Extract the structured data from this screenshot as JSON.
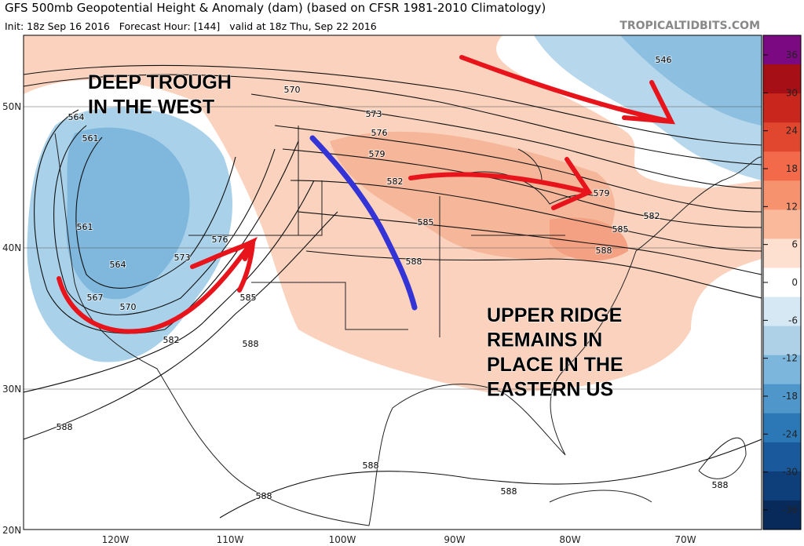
{
  "header": {
    "title": "GFS 500mb Geopotential Height & Anomaly (dam) (based on CFSR 1981-2010 Climatology)",
    "subtitle": "Init: 18z Sep 16 2016   Forecast Hour: [144]   valid at 18z Thu, Sep 22 2016",
    "source": "TROPICALTIDBITS.COM"
  },
  "annotations": [
    [
      "DEEP TROUGH",
      "IN THE WEST"
    ],
    [
      "UPPER RIDGE",
      "REMAINS IN",
      "PLACE IN THE",
      "EASTERN US"
    ]
  ],
  "lat_labels": [
    "50N",
    "40N",
    "30N",
    "20N"
  ],
  "lon_labels": [
    "120W",
    "110W",
    "100W",
    "90W",
    "80W",
    "70W"
  ],
  "colorbar_labels": [
    "36",
    "30",
    "24",
    "18",
    "12",
    "6",
    "0",
    "-6",
    "-12",
    "-18",
    "-24",
    "-30",
    "-36"
  ],
  "contour_labels": [
    "546",
    "570",
    "573",
    "576",
    "579",
    "582",
    "585",
    "588",
    "564",
    "561",
    "561",
    "564",
    "573",
    "576",
    "570",
    "567",
    "585",
    "582",
    "588",
    "579",
    "582",
    "585",
    "588",
    "588",
    "588",
    "588",
    "588",
    "588"
  ]
}
